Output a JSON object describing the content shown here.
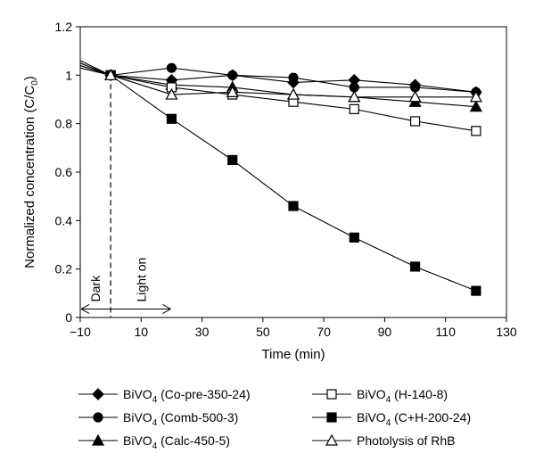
{
  "chart_data": {
    "type": "line",
    "xlabel": "Time (min)",
    "ylabel": "Normalized concentration (C/C",
    "ylabel_sub": "0",
    "ylabel_tail": ")",
    "xlim": [
      -10,
      130
    ],
    "ylim": [
      0,
      1.2
    ],
    "xticks": [
      -10,
      10,
      30,
      50,
      70,
      90,
      110,
      130
    ],
    "xtick_labels": [
      "−10",
      "10",
      "30",
      "50",
      "70",
      "90",
      "110",
      "130"
    ],
    "yticks": [
      0,
      0.2,
      0.4,
      0.6,
      0.8,
      1,
      1.2
    ],
    "ytick_labels": [
      "0",
      "0.2",
      "0.4",
      "0.6",
      "0.8",
      "1",
      "1.2"
    ],
    "grid": false,
    "legend_position": "bottom",
    "annotations": {
      "dark_label": "Dark",
      "light_label": "Light on",
      "dark_start": -10,
      "light_on_at": 0,
      "arrow_end": 20
    },
    "series": [
      {
        "name": "BiVO4 (Co-pre-350-24)",
        "name_main": "BiVO",
        "name_sub": "4",
        "name_tail": " (Co-pre-350-24)",
        "marker": "diamond",
        "filled": true,
        "x": [
          -10,
          0,
          20,
          40,
          60,
          80,
          100,
          120
        ],
        "y": [
          1.05,
          1.0,
          0.98,
          1.0,
          0.97,
          0.98,
          0.96,
          0.93
        ]
      },
      {
        "name": "BiVO4 (Comb-500-3)",
        "name_main": "BiVO",
        "name_sub": "4",
        "name_tail": " (Comb-500-3)",
        "marker": "circle",
        "filled": true,
        "x": [
          -10,
          0,
          20,
          40,
          60,
          80,
          100,
          120
        ],
        "y": [
          1.04,
          1.0,
          1.03,
          1.0,
          0.99,
          0.95,
          0.95,
          0.93
        ]
      },
      {
        "name": "BiVO4 (Calc-450-5)",
        "name_main": "BiVO",
        "name_sub": "4",
        "name_tail": " (Calc-450-5)",
        "marker": "triangle",
        "filled": true,
        "x": [
          -10,
          0,
          20,
          40,
          60,
          80,
          100,
          120
        ],
        "y": [
          1.06,
          1.0,
          0.96,
          0.95,
          0.92,
          0.91,
          0.89,
          0.87
        ]
      },
      {
        "name": "BiVO4 (H-140-8)",
        "name_main": "BiVO",
        "name_sub": "4",
        "name_tail": " (H-140-8)",
        "marker": "square",
        "filled": false,
        "x": [
          -10,
          0,
          20,
          40,
          60,
          80,
          100,
          120
        ],
        "y": [
          1.03,
          1.0,
          0.95,
          0.92,
          0.89,
          0.86,
          0.81,
          0.77
        ]
      },
      {
        "name": "BiVO4 (C+H-200-24)",
        "name_main": "BiVO",
        "name_sub": "4",
        "name_tail": " (C+H-200-24)",
        "marker": "square",
        "filled": true,
        "x": [
          -10,
          0,
          20,
          40,
          60,
          80,
          100,
          120
        ],
        "y": [
          1.05,
          1.0,
          0.82,
          0.65,
          0.46,
          0.33,
          0.21,
          0.11
        ]
      },
      {
        "name": "Photolysis of RhB",
        "name_main": "Photolysis of RhB",
        "name_sub": "",
        "name_tail": "",
        "marker": "triangle",
        "filled": false,
        "x": [
          -10,
          0,
          20,
          40,
          60,
          80,
          100,
          120
        ],
        "y": [
          1.04,
          1.0,
          0.92,
          0.93,
          0.92,
          0.91,
          0.91,
          0.91
        ]
      }
    ]
  }
}
